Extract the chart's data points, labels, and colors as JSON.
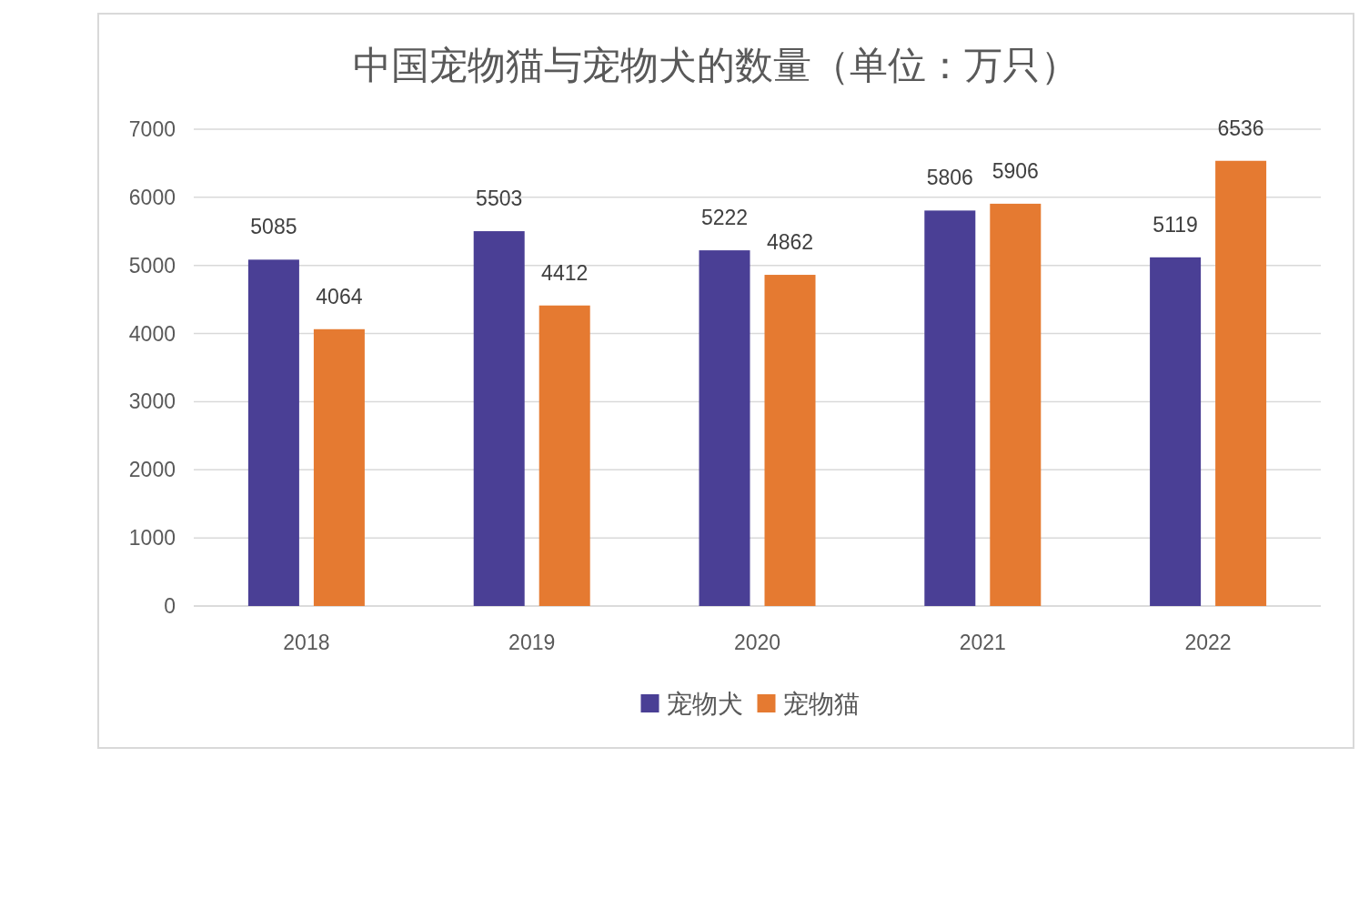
{
  "chart_data": {
    "type": "bar",
    "title": "中国宠物猫与宠物犬的数量（单位：万只）",
    "categories": [
      "2018",
      "2019",
      "2020",
      "2021",
      "2022"
    ],
    "series": [
      {
        "name": "宠物犬",
        "color": "#4a3f95",
        "values": [
          5085,
          5503,
          5222,
          5806,
          5119
        ]
      },
      {
        "name": "宠物猫",
        "color": "#e57a31",
        "values": [
          4064,
          4412,
          4862,
          5906,
          6536
        ]
      }
    ],
    "ylim": [
      0,
      7000
    ],
    "yticks": [
      0,
      1000,
      2000,
      3000,
      4000,
      5000,
      6000,
      7000
    ],
    "grid": "y",
    "legend": "bottom",
    "data_labels": true
  }
}
